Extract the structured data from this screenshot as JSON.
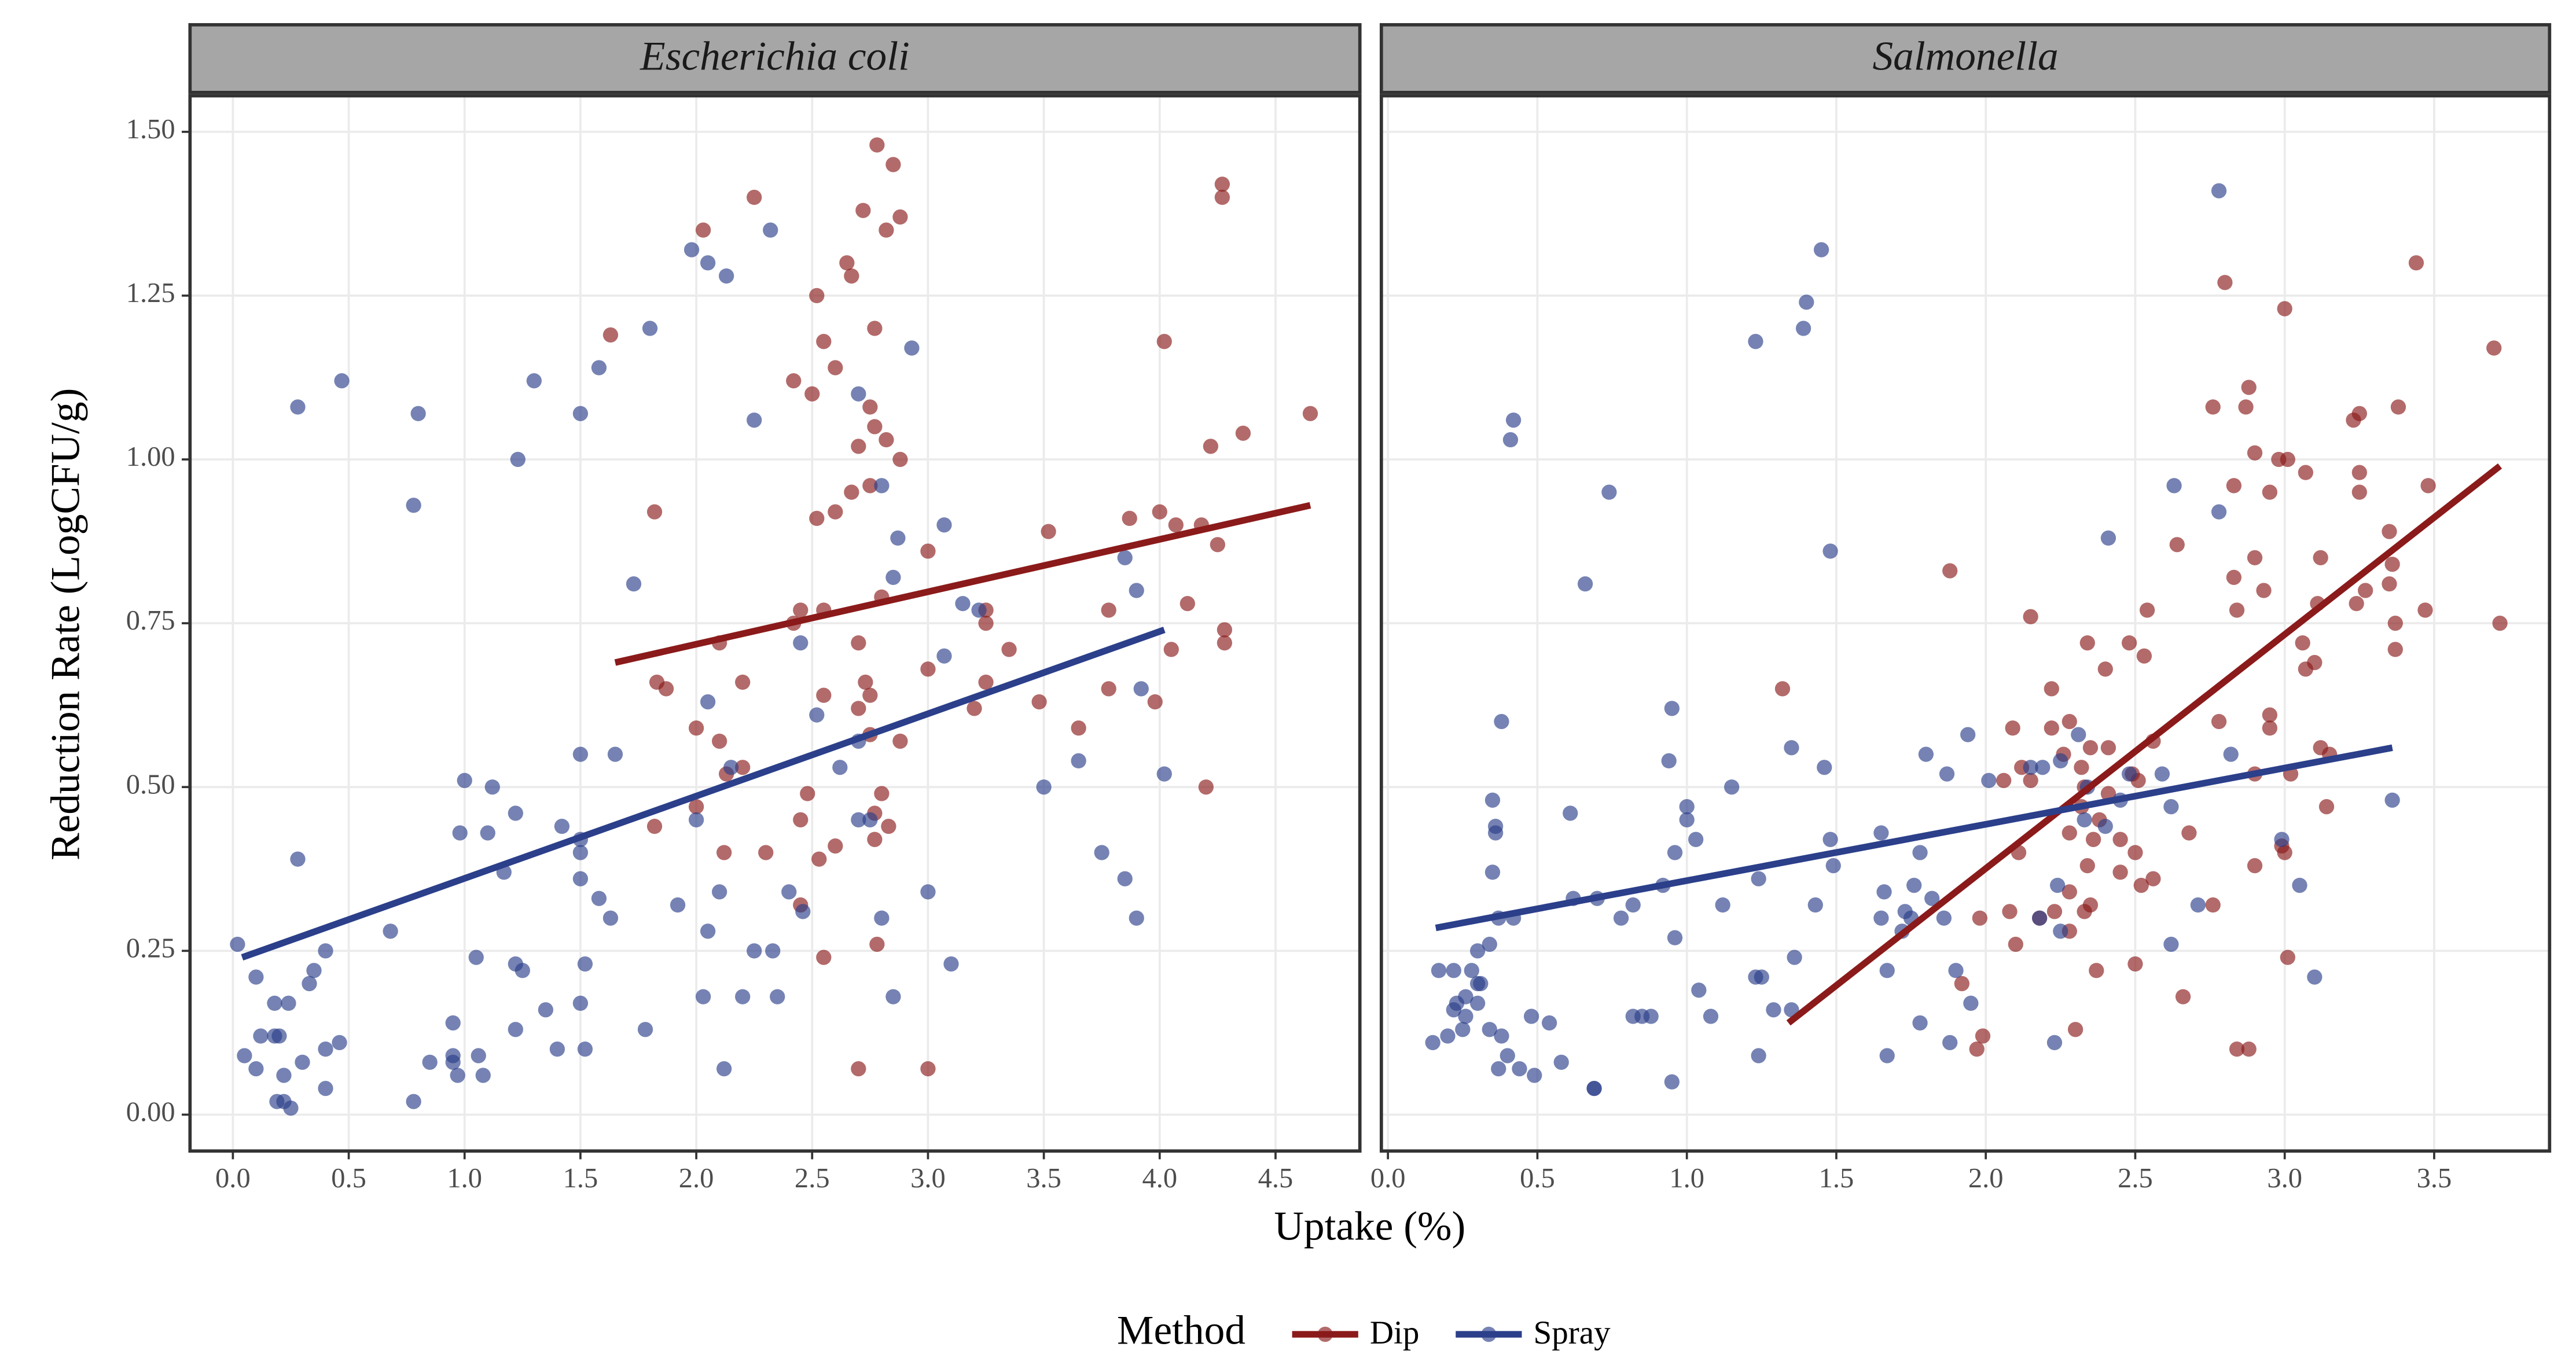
{
  "shared": {
    "x_label": "Uptake (%)",
    "y_label": "Reduction Rate (LogCFU/g)",
    "legend_title": "Method"
  },
  "chart_data": [
    {
      "type": "scatter",
      "title": "Escherichia coli",
      "xlim": [
        -0.185,
        4.864
      ],
      "ylim": [
        -0.0555,
        1.555
      ],
      "xticks": [
        {
          "value": 0,
          "label": "0.0"
        },
        0.5,
        {
          "value": 1,
          "label": "1.0"
        },
        1.5,
        {
          "value": 2,
          "label": "2.0"
        },
        2.5,
        {
          "value": 3,
          "label": "3.0"
        },
        3.5,
        {
          "value": 4,
          "label": "4.0"
        },
        4.5
      ],
      "yticks": [
        {
          "value": 0,
          "label": "0.00"
        },
        0.25,
        {
          "value": 0.5,
          "label": "0.50"
        },
        0.75,
        {
          "value": 1,
          "label": "1.00"
        },
        1.25,
        {
          "value": 1.5,
          "label": "1.50"
        }
      ],
      "grid": true,
      "series": [
        {
          "name": "Dip",
          "color": "#8b1a1a",
          "x": [
            2.03,
            2.25,
            2.78,
            2.85,
            2.72,
            2.88,
            2.82,
            2.65,
            2.67,
            2.77,
            2.52,
            2.55,
            2.6,
            2.42,
            2.5,
            2.75,
            2.77,
            2.82,
            2.88,
            1.63,
            2.7,
            2.67,
            2.75,
            2.6,
            2.52,
            1.82,
            4.27,
            4.27,
            4.02,
            4.65,
            4.36,
            4.22,
            4.0,
            4.07,
            4.18,
            3.0,
            3.25,
            3.25,
            3.0,
            3.35,
            2.7,
            2.45,
            2.55,
            2.8,
            2.42,
            2.1,
            1.83,
            1.87,
            2.2,
            2.73,
            2.7,
            2.75,
            2.55,
            3.2,
            2.0,
            2.1,
            2.75,
            2.88,
            2.13,
            2.2,
            2.8,
            2.48,
            2.45,
            1.82,
            2.0,
            2.77,
            2.83,
            2.77,
            2.6,
            2.12,
            2.3,
            2.53,
            2.45,
            2.55,
            2.78,
            2.7,
            3.0,
            3.52,
            3.87,
            3.78,
            4.12,
            4.25,
            4.28,
            4.28,
            4.05,
            3.98,
            3.65,
            3.48,
            3.78,
            4.2,
            3.25
          ],
          "values": [
            1.35,
            1.4,
            1.48,
            1.45,
            1.38,
            1.37,
            1.35,
            1.3,
            1.28,
            1.2,
            1.25,
            1.18,
            1.14,
            1.12,
            1.1,
            1.08,
            1.05,
            1.03,
            1.0,
            1.19,
            1.02,
            0.95,
            0.96,
            0.92,
            0.91,
            0.92,
            1.42,
            1.4,
            1.18,
            1.07,
            1.04,
            1.02,
            0.92,
            0.9,
            0.9,
            0.86,
            0.77,
            0.75,
            0.68,
            0.71,
            0.72,
            0.77,
            0.77,
            0.79,
            0.75,
            0.72,
            0.66,
            0.65,
            0.66,
            0.66,
            0.62,
            0.64,
            0.64,
            0.62,
            0.59,
            0.57,
            0.58,
            0.57,
            0.52,
            0.53,
            0.49,
            0.49,
            0.45,
            0.44,
            0.47,
            0.46,
            0.44,
            0.42,
            0.41,
            0.4,
            0.4,
            0.39,
            0.32,
            0.24,
            0.26,
            0.07,
            0.07,
            0.89,
            0.91,
            0.77,
            0.78,
            0.87,
            0.74,
            0.72,
            0.71,
            0.63,
            0.59,
            0.63,
            0.65,
            0.5,
            0.66
          ],
          "fit": {
            "x": [
              1.65,
              4.65
            ],
            "values": [
              0.69,
              0.93
            ]
          }
        },
        {
          "name": "Spray",
          "color": "#2b3f8a",
          "x": [
            1.98,
            2.05,
            2.13,
            2.32,
            1.8,
            1.58,
            1.3,
            1.5,
            0.47,
            0.28,
            0.8,
            2.25,
            2.93,
            2.7,
            1.23,
            0.78,
            2.8,
            2.87,
            3.07,
            1.73,
            2.85,
            3.15,
            3.22,
            2.45,
            3.85,
            3.9,
            2.05,
            2.52,
            3.07,
            1.5,
            1.65,
            2.15,
            2.7,
            2.62,
            3.5,
            3.65,
            4.02,
            3.92,
            1.0,
            1.12,
            1.22,
            0.98,
            1.1,
            1.42,
            1.5,
            1.5,
            1.17,
            1.5,
            1.58,
            1.63,
            1.92,
            2.0,
            2.05,
            2.1,
            2.4,
            2.46,
            2.7,
            2.75,
            2.8,
            3.0,
            3.75,
            3.85,
            3.9,
            0.28,
            0.68,
            0.02,
            1.05,
            1.22,
            1.25,
            1.52,
            0.4,
            0.35,
            0.33,
            0.1,
            0.18,
            0.24,
            0.12,
            0.18,
            0.2,
            0.05,
            0.1,
            0.22,
            0.3,
            0.4,
            0.46,
            0.4,
            0.19,
            0.22,
            0.25,
            0.78,
            0.95,
            0.95,
            0.97,
            1.06,
            1.08,
            0.95,
            1.35,
            1.4,
            1.52,
            1.22,
            1.5,
            1.78,
            2.03,
            2.12,
            2.2,
            2.25,
            2.33,
            2.35,
            2.85,
            3.1,
            0.85
          ],
          "values": [
            1.32,
            1.3,
            1.28,
            1.35,
            1.2,
            1.14,
            1.12,
            1.07,
            1.12,
            1.08,
            1.07,
            1.06,
            1.17,
            1.1,
            1.0,
            0.93,
            0.96,
            0.88,
            0.9,
            0.81,
            0.82,
            0.78,
            0.77,
            0.72,
            0.85,
            0.8,
            0.63,
            0.61,
            0.7,
            0.55,
            0.55,
            0.53,
            0.57,
            0.53,
            0.5,
            0.54,
            0.52,
            0.65,
            0.51,
            0.5,
            0.46,
            0.43,
            0.43,
            0.44,
            0.42,
            0.4,
            0.37,
            0.36,
            0.33,
            0.3,
            0.32,
            0.45,
            0.28,
            0.34,
            0.34,
            0.31,
            0.45,
            0.45,
            0.3,
            0.34,
            0.4,
            0.36,
            0.3,
            0.39,
            0.28,
            0.26,
            0.24,
            0.23,
            0.22,
            0.23,
            0.25,
            0.22,
            0.2,
            0.21,
            0.17,
            0.17,
            0.12,
            0.12,
            0.12,
            0.09,
            0.07,
            0.06,
            0.08,
            0.1,
            0.11,
            0.04,
            0.02,
            0.02,
            0.01,
            0.02,
            0.09,
            0.08,
            0.06,
            0.09,
            0.06,
            0.14,
            0.16,
            0.1,
            0.1,
            0.13,
            0.17,
            0.13,
            0.18,
            0.07,
            0.18,
            0.25,
            0.25,
            0.18,
            0.18,
            0.23,
            0.08
          ],
          "fit": {
            "x": [
              0.04,
              4.02
            ],
            "values": [
              0.24,
              0.74
            ]
          }
        }
      ]
    },
    {
      "type": "scatter",
      "title": "Salmonella",
      "xlim": [
        -0.022,
        3.886
      ],
      "ylim": [
        -0.0555,
        1.555
      ],
      "xticks": [
        {
          "value": 0,
          "label": "0.0"
        },
        0.5,
        {
          "value": 1,
          "label": "1.0"
        },
        1.5,
        {
          "value": 2,
          "label": "2.0"
        },
        2.5,
        {
          "value": 3,
          "label": "3.0"
        },
        3.5
      ],
      "grid": true,
      "series": [
        {
          "name": "Dip",
          "color": "#8b1a1a",
          "x": [
            3.44,
            3.7,
            2.8,
            3.0,
            2.88,
            2.76,
            2.87,
            3.25,
            3.23,
            3.38,
            2.9,
            2.98,
            3.01,
            3.07,
            3.25,
            2.95,
            2.83,
            3.25,
            3.48,
            3.35,
            3.12,
            2.9,
            2.64,
            3.36,
            3.27,
            3.24,
            2.83,
            2.93,
            3.35,
            3.72,
            3.47,
            3.37,
            3.11,
            2.54,
            2.84,
            3.06,
            3.37,
            3.1,
            3.07,
            1.32,
            1.88,
            2.15,
            2.34,
            2.48,
            2.53,
            2.4,
            2.22,
            2.28,
            2.35,
            2.41,
            2.56,
            2.78,
            2.95,
            2.95,
            2.09,
            2.22,
            2.26,
            2.12,
            2.32,
            2.06,
            2.15,
            2.49,
            2.51,
            2.33,
            2.41,
            2.68,
            2.9,
            3.02,
            3.12,
            3.15,
            3.14,
            2.32,
            2.38,
            2.28,
            2.36,
            2.45,
            2.5,
            2.34,
            2.45,
            2.11,
            2.28,
            2.35,
            2.33,
            2.23,
            2.18,
            2.08,
            2.28,
            2.52,
            2.56,
            2.76,
            2.9,
            2.99,
            3.0,
            1.98,
            1.97,
            1.99,
            1.92,
            2.1,
            2.3,
            2.37,
            2.5,
            2.66,
            2.84,
            2.88,
            3.01
          ],
          "values": [
            1.3,
            1.17,
            1.27,
            1.23,
            1.11,
            1.08,
            1.08,
            1.07,
            1.06,
            1.08,
            1.01,
            1.0,
            1.0,
            0.98,
            0.98,
            0.95,
            0.96,
            0.95,
            0.96,
            0.89,
            0.85,
            0.85,
            0.87,
            0.84,
            0.8,
            0.78,
            0.82,
            0.8,
            0.81,
            0.75,
            0.77,
            0.75,
            0.78,
            0.77,
            0.77,
            0.72,
            0.71,
            0.69,
            0.68,
            0.65,
            0.83,
            0.76,
            0.72,
            0.72,
            0.7,
            0.68,
            0.65,
            0.6,
            0.56,
            0.56,
            0.57,
            0.6,
            0.61,
            0.59,
            0.59,
            0.59,
            0.55,
            0.53,
            0.53,
            0.51,
            0.51,
            0.52,
            0.51,
            0.5,
            0.49,
            0.43,
            0.52,
            0.52,
            0.56,
            0.55,
            0.47,
            0.47,
            0.45,
            0.43,
            0.42,
            0.42,
            0.4,
            0.38,
            0.37,
            0.4,
            0.34,
            0.32,
            0.31,
            0.31,
            0.3,
            0.31,
            0.28,
            0.35,
            0.36,
            0.32,
            0.38,
            0.41,
            0.4,
            0.3,
            0.1,
            0.12,
            0.2,
            0.26,
            0.13,
            0.22,
            0.23,
            0.18,
            0.1,
            0.1,
            0.24
          ],
          "fit": {
            "x": [
              1.34,
              3.72
            ],
            "values": [
              0.14,
              0.99
            ]
          }
        },
        {
          "name": "Spray",
          "color": "#2b3f8a",
          "x": [
            2.78,
            1.45,
            1.4,
            1.39,
            1.23,
            0.42,
            0.41,
            0.74,
            1.48,
            2.63,
            2.41,
            2.78,
            0.66,
            0.38,
            0.61,
            0.95,
            0.94,
            1.35,
            1.46,
            1.15,
            1.0,
            1.0,
            0.35,
            0.36,
            0.36,
            0.35,
            0.37,
            0.42,
            0.62,
            0.7,
            0.78,
            0.82,
            0.92,
            0.96,
            0.96,
            1.03,
            1.12,
            1.24,
            1.49,
            1.48,
            1.43,
            1.65,
            1.66,
            1.65,
            1.76,
            1.73,
            1.72,
            1.75,
            1.82,
            1.86,
            1.78,
            1.87,
            1.8,
            1.94,
            2.01,
            2.19,
            2.15,
            2.25,
            2.31,
            2.34,
            2.48,
            2.45,
            2.59,
            2.62,
            2.4,
            2.33,
            2.18,
            2.25,
            2.24,
            2.62,
            2.71,
            2.82,
            2.99,
            3.05,
            3.1,
            3.36,
            2.23,
            1.88,
            1.78,
            1.9,
            1.95,
            1.67,
            1.67,
            1.36,
            1.29,
            1.35,
            1.25,
            1.23,
            1.24,
            1.08,
            1.04,
            0.88,
            0.85,
            0.82,
            0.95,
            0.69,
            0.69,
            0.58,
            0.54,
            0.48,
            0.49,
            0.44,
            0.4,
            0.37,
            0.38,
            0.34,
            0.3,
            0.3,
            0.31,
            0.3,
            0.26,
            0.23,
            0.22,
            0.17,
            0.15,
            0.2,
            0.22,
            0.26,
            0.25,
            0.28,
            0.34
          ],
          "values": [
            1.41,
            1.32,
            1.24,
            1.2,
            1.18,
            1.06,
            1.03,
            0.95,
            0.86,
            0.96,
            0.88,
            0.92,
            0.81,
            0.6,
            0.46,
            0.62,
            0.54,
            0.56,
            0.53,
            0.5,
            0.47,
            0.45,
            0.48,
            0.44,
            0.43,
            0.37,
            0.3,
            0.3,
            0.33,
            0.33,
            0.3,
            0.32,
            0.35,
            0.27,
            0.4,
            0.42,
            0.32,
            0.36,
            0.38,
            0.42,
            0.32,
            0.43,
            0.34,
            0.3,
            0.35,
            0.31,
            0.28,
            0.3,
            0.33,
            0.3,
            0.4,
            0.52,
            0.55,
            0.58,
            0.51,
            0.53,
            0.53,
            0.54,
            0.58,
            0.5,
            0.52,
            0.48,
            0.52,
            0.47,
            0.44,
            0.45,
            0.3,
            0.28,
            0.35,
            0.26,
            0.32,
            0.55,
            0.42,
            0.35,
            0.21,
            0.48,
            0.11,
            0.11,
            0.14,
            0.22,
            0.17,
            0.22,
            0.09,
            0.24,
            0.16,
            0.16,
            0.21,
            0.21,
            0.09,
            0.15,
            0.19,
            0.15,
            0.15,
            0.15,
            0.05,
            0.04,
            0.04,
            0.08,
            0.14,
            0.15,
            0.06,
            0.07,
            0.09,
            0.07,
            0.12,
            0.13,
            0.17,
            0.2,
            0.2,
            0.25,
            0.18,
            0.17,
            0.22,
            0.22,
            0.11,
            0.12,
            0.16,
            0.15,
            0.13,
            0.22,
            0.26
          ],
          "fit": {
            "x": [
              0.16,
              3.36
            ],
            "values": [
              0.285,
              0.56
            ]
          }
        }
      ]
    }
  ]
}
